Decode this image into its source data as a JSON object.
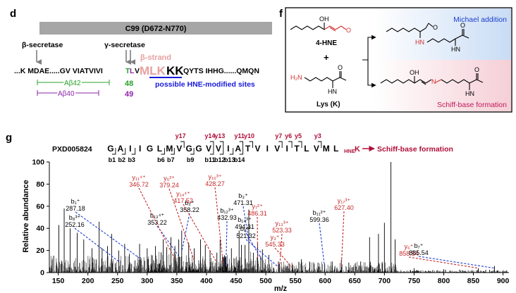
{
  "panel_d": {
    "label": "d",
    "bar_title": "C99 (D672-N770)",
    "beta_secretase": "β-secretase",
    "gamma_secretase": "γ-secretase",
    "beta_strand": "β-strand",
    "seq_start": "...K MDAE.....GV VIATVIVI",
    "seq_t": "T",
    "seq_l": "L",
    "seq_v": "V",
    "seq_mlk": "MLK",
    "seq_kk": "KK",
    "seq_end": "QYTS IHHG......QMQN",
    "ab42": "Aβ42",
    "ab40": "Aβ40",
    "n48": "48",
    "n49": "49",
    "sites_label": "possible HNE-modified sites",
    "colors": {
      "green": "#2ca02c",
      "purple": "#8e24aa",
      "pink": "#e8a0a0",
      "blue": "#1a1adc",
      "gray_bar": "#a6a6a6"
    }
  },
  "panel_f": {
    "label": "f",
    "hne_label": "4-HNE",
    "plus": "+",
    "lys_label": "Lys (K)",
    "oh": "OH",
    "o": "O",
    "h2n": "H₂N",
    "hn": "HN",
    "n": "N",
    "michael": "Michael addition",
    "schiff": "Schiff-base formation",
    "colors": {
      "michael": "#1a3fcc",
      "schiff": "#c2185b",
      "red": "#d32f2f"
    }
  },
  "panel_g": {
    "label": "g",
    "dataset": "PXD005824",
    "sequence": [
      "G",
      "A",
      "I",
      "I",
      "G",
      "L",
      "M",
      "V",
      "G",
      "G",
      "V",
      "V",
      "I",
      "A",
      "T",
      "V",
      "I",
      "V",
      "I",
      "T",
      "L",
      "V",
      "M",
      "L"
    ],
    "hne_sub": "HNE",
    "hne_k": "K",
    "arrow_label": "Schiff-base formation",
    "y_ions_top": [
      {
        "label": "y17",
        "col": 7
      },
      {
        "label": "y14",
        "col": 10
      },
      {
        "label": "y13",
        "col": 11
      },
      {
        "label": "y11",
        "col": 13
      },
      {
        "label": "y10",
        "col": 14
      },
      {
        "label": "y7",
        "col": 17
      },
      {
        "label": "y6",
        "col": 18
      },
      {
        "label": "y5",
        "col": 19
      },
      {
        "label": "y3",
        "col": 21
      }
    ],
    "b_ions_bottom": [
      {
        "label": "b1",
        "col": 0
      },
      {
        "label": "b2",
        "col": 1
      },
      {
        "label": "b3",
        "col": 2
      },
      {
        "label": "b6",
        "col": 5
      },
      {
        "label": "b7",
        "col": 6
      },
      {
        "label": "b9",
        "col": 8
      },
      {
        "label": "b11",
        "col": 10
      },
      {
        "label": "b12",
        "col": 11
      },
      {
        "label": "b13",
        "col": 12
      },
      {
        "label": "b14",
        "col": 13
      }
    ],
    "colors": {
      "y": "#b0103a",
      "b": "#000000",
      "red_ion": "#c62828",
      "blue_line": "#1f3fd1"
    }
  },
  "chart_data": {
    "type": "bar",
    "xlabel": "m/z",
    "ylabel": "Relative abundance",
    "xlim": [
      135,
      910
    ],
    "ylim": [
      0,
      100
    ],
    "xticks": [
      150,
      200,
      250,
      300,
      350,
      400,
      450,
      500,
      550,
      600,
      650,
      700,
      750,
      800,
      850,
      900
    ],
    "yticks": [
      0,
      20,
      40,
      60,
      80,
      100
    ],
    "annotated_peaks": [
      {
        "ion": "b₈³⁺",
        "mz": "252.16",
        "x": 252.16,
        "series": "b"
      },
      {
        "ion": "b₁⁺",
        "mz": "287.18",
        "x": 287.18,
        "series": "b"
      },
      {
        "ion": "b₁₃⁴⁺",
        "mz": "353.22",
        "x": 353.22,
        "series": "b"
      },
      {
        "ion": "b₂⁺",
        "mz": "358.22",
        "x": 358.22,
        "series": "b"
      },
      {
        "ion": "y₁₁⁴⁺",
        "mz": "346.72",
        "x": 346.72,
        "series": "y"
      },
      {
        "ion": "y₅²⁺",
        "mz": "379.24",
        "x": 379.24,
        "series": "y"
      },
      {
        "ion": "y₁₄⁴⁺",
        "mz": "417.52",
        "x": 417.52,
        "series": "y"
      },
      {
        "ion": "y₁₀³⁺",
        "mz": "428.27",
        "x": 428.27,
        "series": "y"
      },
      {
        "ion": "b₁₂³⁺",
        "mz": "432.93",
        "x": 432.93,
        "series": "b"
      },
      {
        "ion": "b₃⁺",
        "mz": "471.31",
        "x": 471.31,
        "series": "b"
      },
      {
        "ion": "y₇²⁺",
        "mz": "486.31",
        "x": 486.31,
        "series": "y"
      },
      {
        "ion": "b₁₄³⁺",
        "mz": "494.31",
        "x": 494.31,
        "series": "b"
      },
      {
        "ion": "b₉²⁺",
        "mz": "521.32",
        "x": 521.32,
        "series": "b"
      },
      {
        "ion": "y₁₃³⁺",
        "mz": "523.33",
        "x": 523.33,
        "series": "y"
      },
      {
        "ion": "y₃⁺",
        "mz": "545.33",
        "x": 545.33,
        "series": "y"
      },
      {
        "ion": "b₁₁²⁺",
        "mz": "599.36",
        "x": 599.36,
        "series": "b"
      },
      {
        "ion": "y₁₇³⁺",
        "mz": "627.40",
        "x": 627.4,
        "series": "y"
      },
      {
        "ion": "y₆⁺",
        "mz": "858.54",
        "x": 858.54,
        "series": "y"
      },
      {
        "ion": "b₇⁺",
        "mz": "885.54",
        "x": 885.54,
        "series": "b"
      }
    ],
    "major_peaks": [
      {
        "x": 151,
        "y": 43
      },
      {
        "x": 160,
        "y": 58
      },
      {
        "x": 170,
        "y": 40
      },
      {
        "x": 182,
        "y": 36
      },
      {
        "x": 193,
        "y": 30
      },
      {
        "x": 207,
        "y": 22
      },
      {
        "x": 219,
        "y": 46
      },
      {
        "x": 224,
        "y": 22
      },
      {
        "x": 233,
        "y": 24
      },
      {
        "x": 240,
        "y": 35
      },
      {
        "x": 252.16,
        "y": 20
      },
      {
        "x": 262,
        "y": 26
      },
      {
        "x": 270,
        "y": 17
      },
      {
        "x": 287.18,
        "y": 26
      },
      {
        "x": 300,
        "y": 22
      },
      {
        "x": 314,
        "y": 24
      },
      {
        "x": 327,
        "y": 30
      },
      {
        "x": 333,
        "y": 23
      },
      {
        "x": 340,
        "y": 32
      },
      {
        "x": 346.72,
        "y": 24
      },
      {
        "x": 353.22,
        "y": 30
      },
      {
        "x": 358.22,
        "y": 38
      },
      {
        "x": 370,
        "y": 27
      },
      {
        "x": 379.24,
        "y": 22
      },
      {
        "x": 390,
        "y": 30
      },
      {
        "x": 398,
        "y": 25
      },
      {
        "x": 406,
        "y": 20
      },
      {
        "x": 417.52,
        "y": 18
      },
      {
        "x": 423,
        "y": 30
      },
      {
        "x": 428.27,
        "y": 14
      },
      {
        "x": 432.93,
        "y": 13
      },
      {
        "x": 442,
        "y": 22
      },
      {
        "x": 455,
        "y": 38
      },
      {
        "x": 459,
        "y": 25
      },
      {
        "x": 465,
        "y": 25
      },
      {
        "x": 471.31,
        "y": 57
      },
      {
        "x": 479,
        "y": 18
      },
      {
        "x": 486.31,
        "y": 26
      },
      {
        "x": 494.31,
        "y": 21
      },
      {
        "x": 505,
        "y": 16
      },
      {
        "x": 521.32,
        "y": 10
      },
      {
        "x": 523.33,
        "y": 8
      },
      {
        "x": 545.33,
        "y": 7
      },
      {
        "x": 560,
        "y": 12
      },
      {
        "x": 574,
        "y": 10
      },
      {
        "x": 588,
        "y": 9
      },
      {
        "x": 599.36,
        "y": 8
      },
      {
        "x": 612,
        "y": 10
      },
      {
        "x": 627.4,
        "y": 12
      },
      {
        "x": 640,
        "y": 9
      },
      {
        "x": 660,
        "y": 10
      },
      {
        "x": 675,
        "y": 32
      },
      {
        "x": 690,
        "y": 35
      },
      {
        "x": 700,
        "y": 45
      },
      {
        "x": 711,
        "y": 100
      },
      {
        "x": 718,
        "y": 30
      },
      {
        "x": 750,
        "y": 4
      },
      {
        "x": 800,
        "y": 3
      },
      {
        "x": 858.54,
        "y": 4
      },
      {
        "x": 885.54,
        "y": 6
      }
    ]
  }
}
